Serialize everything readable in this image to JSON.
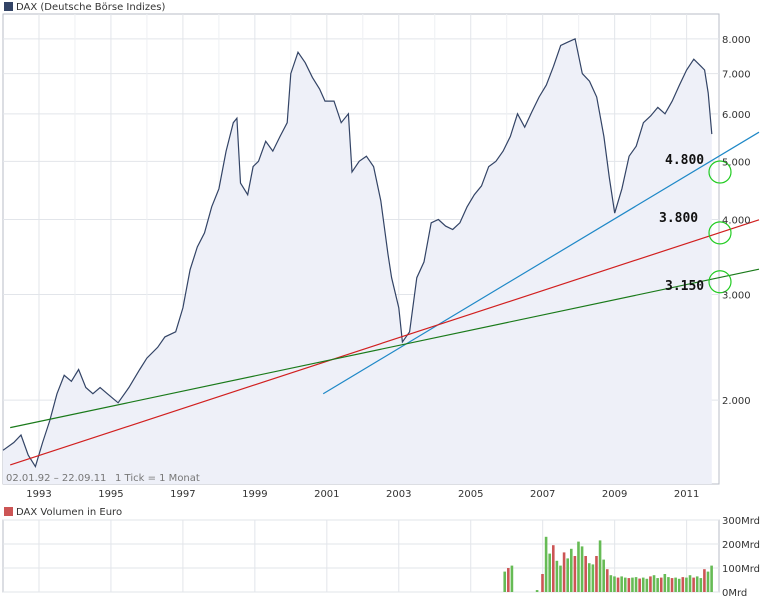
{
  "chart_data": [
    {
      "type": "area",
      "legend": "DAX (Deutsche Börse Indizes)",
      "legend_color": "#334466",
      "date_range": "02.01.92 – 22.09.11",
      "tick_info": "1 Tick = 1 Monat",
      "x_ticks": [
        "1993",
        "1995",
        "1997",
        "1999",
        "2001",
        "2003",
        "2005",
        "2007",
        "2009",
        "2011"
      ],
      "y_scale": "log",
      "ylim": [
        1450,
        8800
      ],
      "y_ticks": [
        {
          "value": 2000,
          "label": "2.000"
        },
        {
          "value": 3000,
          "label": "3.000"
        },
        {
          "value": 4000,
          "label": "4.000"
        },
        {
          "value": 5000,
          "label": "5.000"
        },
        {
          "value": 6000,
          "label": "6.000"
        },
        {
          "value": 7000,
          "label": "7.000"
        },
        {
          "value": 8000,
          "label": "8.000"
        }
      ],
      "grid": true,
      "x_range": [
        1992.0,
        2011.9
      ],
      "x": [
        1992.0,
        1992.3,
        1992.5,
        1992.7,
        1992.9,
        1993.1,
        1993.3,
        1993.5,
        1993.7,
        1993.9,
        1994.1,
        1994.3,
        1994.5,
        1994.7,
        1994.9,
        1995.2,
        1995.5,
        1995.8,
        1996.0,
        1996.3,
        1996.5,
        1996.8,
        1997.0,
        1997.2,
        1997.4,
        1997.6,
        1997.8,
        1998.0,
        1998.2,
        1998.4,
        1998.5,
        1998.6,
        1998.8,
        1998.95,
        1999.1,
        1999.3,
        1999.5,
        1999.7,
        1999.9,
        2000.0,
        2000.2,
        2000.4,
        2000.6,
        2000.8,
        2000.95,
        2001.2,
        2001.4,
        2001.6,
        2001.7,
        2001.9,
        2002.1,
        2002.3,
        2002.5,
        2002.7,
        2002.8,
        2003.0,
        2003.1,
        2003.3,
        2003.5,
        2003.7,
        2003.9,
        2004.1,
        2004.3,
        2004.5,
        2004.7,
        2004.9,
        2005.1,
        2005.3,
        2005.5,
        2005.7,
        2005.9,
        2006.1,
        2006.3,
        2006.5,
        2006.7,
        2006.9,
        2007.1,
        2007.3,
        2007.5,
        2007.7,
        2007.9,
        2008.1,
        2008.3,
        2008.5,
        2008.7,
        2008.85,
        2009.0,
        2009.2,
        2009.4,
        2009.6,
        2009.8,
        2010.0,
        2010.2,
        2010.4,
        2010.6,
        2010.8,
        2011.0,
        2011.2,
        2011.4,
        2011.5,
        2011.6,
        2011.7
      ],
      "values": [
        1650,
        1700,
        1750,
        1620,
        1550,
        1700,
        1850,
        2050,
        2200,
        2150,
        2250,
        2100,
        2050,
        2100,
        2050,
        1980,
        2100,
        2250,
        2350,
        2450,
        2550,
        2600,
        2850,
        3300,
        3600,
        3800,
        4200,
        4500,
        5200,
        5800,
        5900,
        4600,
        4400,
        4900,
        5000,
        5400,
        5200,
        5500,
        5800,
        7000,
        7600,
        7300,
        6900,
        6600,
        6300,
        6300,
        5800,
        6000,
        4800,
        5000,
        5100,
        4900,
        4300,
        3500,
        3200,
        2850,
        2500,
        2600,
        3200,
        3400,
        3950,
        4000,
        3900,
        3850,
        3950,
        4200,
        4400,
        4550,
        4900,
        5000,
        5200,
        5500,
        6000,
        5700,
        6050,
        6400,
        6700,
        7200,
        7800,
        7900,
        8000,
        7000,
        6800,
        6400,
        5500,
        4700,
        4100,
        4500,
        5100,
        5300,
        5800,
        5950,
        6150,
        6000,
        6300,
        6700,
        7100,
        7400,
        7200,
        7100,
        6500,
        5550
      ],
      "annotations": [
        "4.800",
        "3.800",
        "3.150"
      ],
      "trendlines": [
        {
          "color": "#1e88c7",
          "from": [
            2000.9,
            2050
          ],
          "to": [
            2011.9,
            5100
          ]
        },
        {
          "color": "#d11f1f",
          "from": [
            1992.2,
            1560
          ],
          "to": [
            2011.9,
            3800
          ]
        },
        {
          "color": "#1a7a1a",
          "from": [
            1992.2,
            1800
          ],
          "to": [
            2011.9,
            3200
          ]
        }
      ]
    },
    {
      "type": "bar",
      "legend": "DAX Volumen in Euro",
      "legend_color": "#cc5555",
      "y_ticks": [
        "300Mrd",
        "200Mrd",
        "100Mrd",
        "0Mrd"
      ],
      "y_tick_values": [
        300,
        200,
        100,
        0
      ],
      "ylim": [
        0,
        300
      ],
      "bars": [
        {
          "x": 2005.95,
          "v": 85
        },
        {
          "x": 2006.05,
          "v": 100
        },
        {
          "x": 2006.15,
          "v": 110
        },
        {
          "x": 2006.85,
          "v": 8
        },
        {
          "x": 2007.0,
          "v": 75
        },
        {
          "x": 2007.1,
          "v": 230
        },
        {
          "x": 2007.2,
          "v": 160
        },
        {
          "x": 2007.3,
          "v": 195
        },
        {
          "x": 2007.4,
          "v": 130
        },
        {
          "x": 2007.5,
          "v": 110
        },
        {
          "x": 2007.6,
          "v": 165
        },
        {
          "x": 2007.7,
          "v": 140
        },
        {
          "x": 2007.8,
          "v": 180
        },
        {
          "x": 2007.9,
          "v": 150
        },
        {
          "x": 2008.0,
          "v": 210
        },
        {
          "x": 2008.1,
          "v": 190
        },
        {
          "x": 2008.2,
          "v": 150
        },
        {
          "x": 2008.3,
          "v": 120
        },
        {
          "x": 2008.4,
          "v": 115
        },
        {
          "x": 2008.5,
          "v": 150
        },
        {
          "x": 2008.6,
          "v": 215
        },
        {
          "x": 2008.7,
          "v": 135
        },
        {
          "x": 2008.8,
          "v": 95
        },
        {
          "x": 2008.9,
          "v": 70
        },
        {
          "x": 2009.0,
          "v": 65
        },
        {
          "x": 2009.1,
          "v": 60
        },
        {
          "x": 2009.2,
          "v": 65
        },
        {
          "x": 2009.3,
          "v": 60
        },
        {
          "x": 2009.4,
          "v": 58
        },
        {
          "x": 2009.5,
          "v": 60
        },
        {
          "x": 2009.6,
          "v": 62
        },
        {
          "x": 2009.7,
          "v": 56
        },
        {
          "x": 2009.8,
          "v": 60
        },
        {
          "x": 2009.9,
          "v": 55
        },
        {
          "x": 2010.0,
          "v": 65
        },
        {
          "x": 2010.1,
          "v": 70
        },
        {
          "x": 2010.2,
          "v": 58
        },
        {
          "x": 2010.3,
          "v": 60
        },
        {
          "x": 2010.4,
          "v": 75
        },
        {
          "x": 2010.5,
          "v": 62
        },
        {
          "x": 2010.6,
          "v": 58
        },
        {
          "x": 2010.7,
          "v": 60
        },
        {
          "x": 2010.8,
          "v": 55
        },
        {
          "x": 2010.9,
          "v": 62
        },
        {
          "x": 2011.0,
          "v": 60
        },
        {
          "x": 2011.1,
          "v": 70
        },
        {
          "x": 2011.2,
          "v": 60
        },
        {
          "x": 2011.3,
          "v": 65
        },
        {
          "x": 2011.4,
          "v": 58
        },
        {
          "x": 2011.5,
          "v": 95
        },
        {
          "x": 2011.6,
          "v": 85
        },
        {
          "x": 2011.7,
          "v": 110
        }
      ]
    }
  ]
}
